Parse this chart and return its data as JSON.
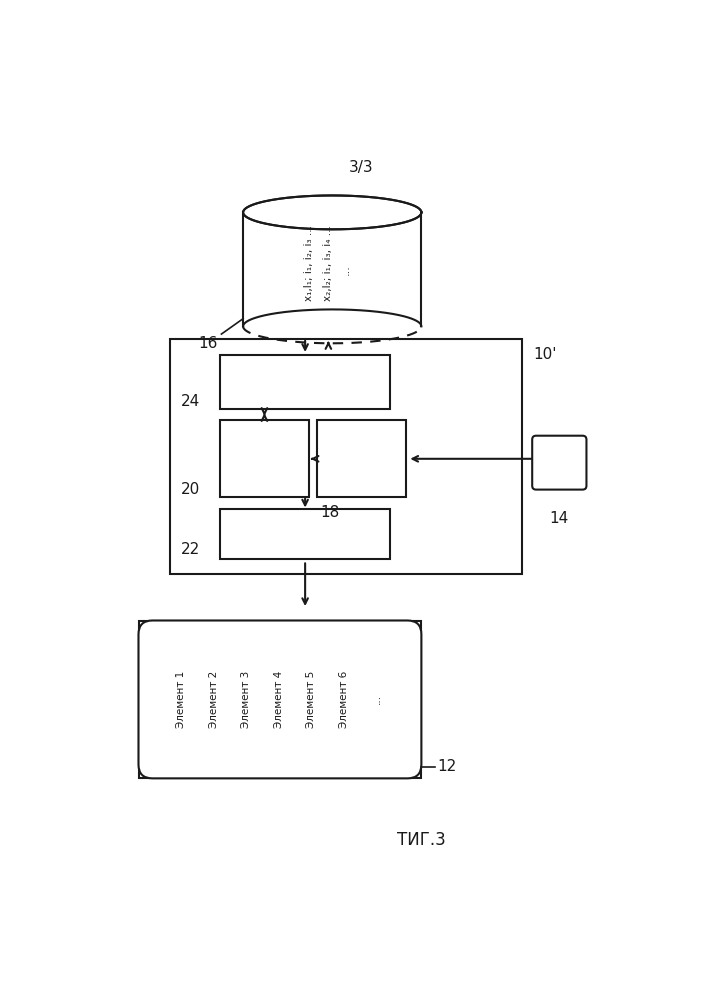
{
  "title": "3/3",
  "fig_caption": "ΤИГ.3",
  "background_color": "#ffffff",
  "line_color": "#1a1a1a",
  "label_16": "16",
  "label_10": "10'",
  "label_24": "24",
  "label_20": "20",
  "label_22": "22",
  "label_18": "18",
  "label_14": "14",
  "label_12": "12",
  "db_text_line1": "x₁,I₁; i₁, i₂, i₃ ...",
  "db_text_line2": "x₂,I₂; i₁, i₃, i₄ ...",
  "db_text_line3": "...",
  "filter_lines": [
    "Элемент 1",
    "Элемент 2",
    "Элемент 3",
    "Элемент 4",
    "Элемент 5",
    "Элемент 6",
    "..."
  ]
}
